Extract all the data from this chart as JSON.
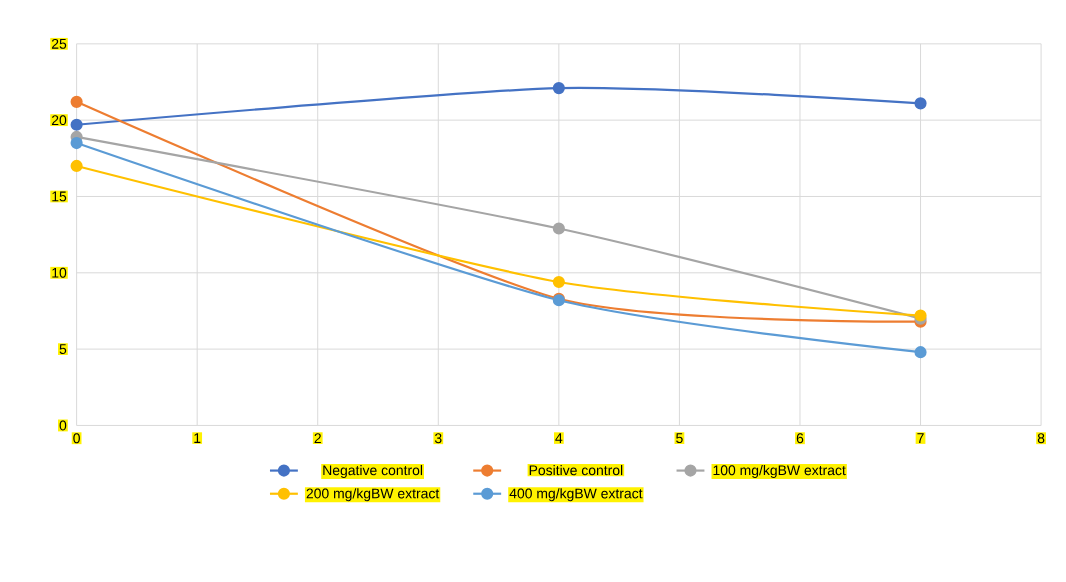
{
  "chart_data": {
    "type": "line",
    "x": [
      0,
      4,
      7
    ],
    "series": [
      {
        "name": "Negative control",
        "color": "#4472c4",
        "values": [
          19.7,
          22.1,
          21.1
        ]
      },
      {
        "name": "Positive control",
        "color": "#ed7d31",
        "values": [
          21.2,
          8.3,
          6.8
        ]
      },
      {
        "name": "100 mg/kgBW extract",
        "color": "#a5a5a5",
        "values": [
          18.9,
          12.9,
          7.0
        ]
      },
      {
        "name": "200 mg/kgBW extract",
        "color": "#ffc000",
        "values": [
          17.0,
          9.4,
          7.2
        ]
      },
      {
        "name": "400 mg/kgBW extract",
        "color": "#5b9bd5",
        "values": [
          18.5,
          8.2,
          4.8
        ]
      }
    ],
    "xlim": [
      0,
      8
    ],
    "xticks": [
      0,
      1,
      2,
      3,
      4,
      5,
      6,
      7,
      8
    ],
    "ylim": [
      0,
      25
    ],
    "yticks": [
      0,
      5,
      10,
      15,
      20,
      25
    ],
    "grid": true,
    "legend": "bottom",
    "marker": "circle"
  }
}
